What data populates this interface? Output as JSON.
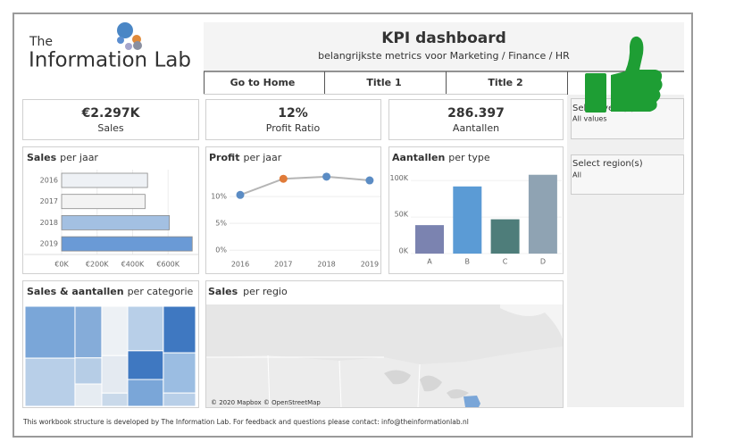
{
  "logo": {
    "line1": "The",
    "line2": "Information Lab"
  },
  "header": {
    "title": "KPI dashboard",
    "subtitle": "belangrijkste metrics voor Marketing / Finance / HR"
  },
  "tabs": [
    "Go to Home",
    "Title 1",
    "Title 2"
  ],
  "kpis": [
    {
      "value": "€2.297K",
      "label": "Sales"
    },
    {
      "value": "12%",
      "label": "Profit Ratio"
    },
    {
      "value": "286.397",
      "label": "Aantallen"
    }
  ],
  "filters": [
    {
      "label": "Select year(s)",
      "value": "All values"
    },
    {
      "label": "Select region(s)",
      "value": "All"
    }
  ],
  "map": {
    "title_bold": "Sales",
    "title_rest": "per regio",
    "attribution": "© 2020 Mapbox © OpenStreetMap"
  },
  "footer": "This workbook structure is developed by The Information Lab. For feedback and questions please contact: info@theinformationlab.nl",
  "chart_data": [
    {
      "type": "hbar",
      "title_bold": "Sales",
      "title_rest": "per jaar",
      "categories": [
        "2016",
        "2017",
        "2018",
        "2019"
      ],
      "values": [
        484,
        470,
        607,
        736
      ],
      "colors": [
        "#eef1f5",
        "#f3f3f3",
        "#a3c0e2",
        "#6a9ad6"
      ],
      "xlim": [
        0,
        770
      ],
      "xticks": [
        {
          "value": 0,
          "label": "€0K"
        },
        {
          "value": 200,
          "label": "€200K"
        },
        {
          "value": 400,
          "label": "€400K"
        },
        {
          "value": 600,
          "label": "€600K"
        }
      ],
      "grid": true
    },
    {
      "type": "line",
      "title_bold": "Profit",
      "title_rest": "per jaar",
      "categories": [
        "2016",
        "2017",
        "2018",
        "2019"
      ],
      "values": [
        10.3,
        13.3,
        13.7,
        13.0
      ],
      "line_color": "#b5b5b5",
      "point_colors": [
        "#5b8cc4",
        "#e07b39",
        "#5b8cc4",
        "#5b8cc4"
      ],
      "ylim": [
        -0.8,
        15
      ],
      "yticks": [
        {
          "value": 0,
          "label": "0%"
        },
        {
          "value": 5,
          "label": "5%"
        },
        {
          "value": 10,
          "label": "10%"
        }
      ],
      "grid": true
    },
    {
      "type": "bar",
      "title_bold": "Aantallen",
      "title_rest": "per type",
      "categories": [
        "A",
        "B",
        "C",
        "D"
      ],
      "values": [
        39,
        92,
        47,
        108
      ],
      "colors": [
        "#7b83b0",
        "#5b9bd5",
        "#4e7d7a",
        "#8fa3b3"
      ],
      "ylim": [
        0,
        115
      ],
      "yticks": [
        {
          "value": 0,
          "label": "0K"
        },
        {
          "value": 50,
          "label": "50K"
        },
        {
          "value": 100,
          "label": "100K"
        }
      ],
      "grid": true
    },
    {
      "type": "treemap",
      "title_bold": "Sales & aantallen",
      "title_rest": "per categorie",
      "values": [
        [
          15.2,
          14.1
        ],
        [
          8.1,
          4.1,
          3.5
        ],
        [
          7.5,
          5.7,
          2.0
        ],
        [
          9.3,
          6.0,
          5.6
        ],
        [
          8.8,
          7.6,
          2.5
        ]
      ],
      "colors": [
        [
          "#7aa6d8",
          "#b8cfe8"
        ],
        [
          "#85acd9",
          "#b6cde6",
          "#e6ecf2"
        ],
        [
          "#edf1f5",
          "#e4eaf1",
          "#c9d9ea"
        ],
        [
          "#b8cfe8",
          "#3f78c1",
          "#7aa6d8"
        ],
        [
          "#3f78c1",
          "#9bbde2",
          "#b8cfe8"
        ]
      ]
    }
  ]
}
